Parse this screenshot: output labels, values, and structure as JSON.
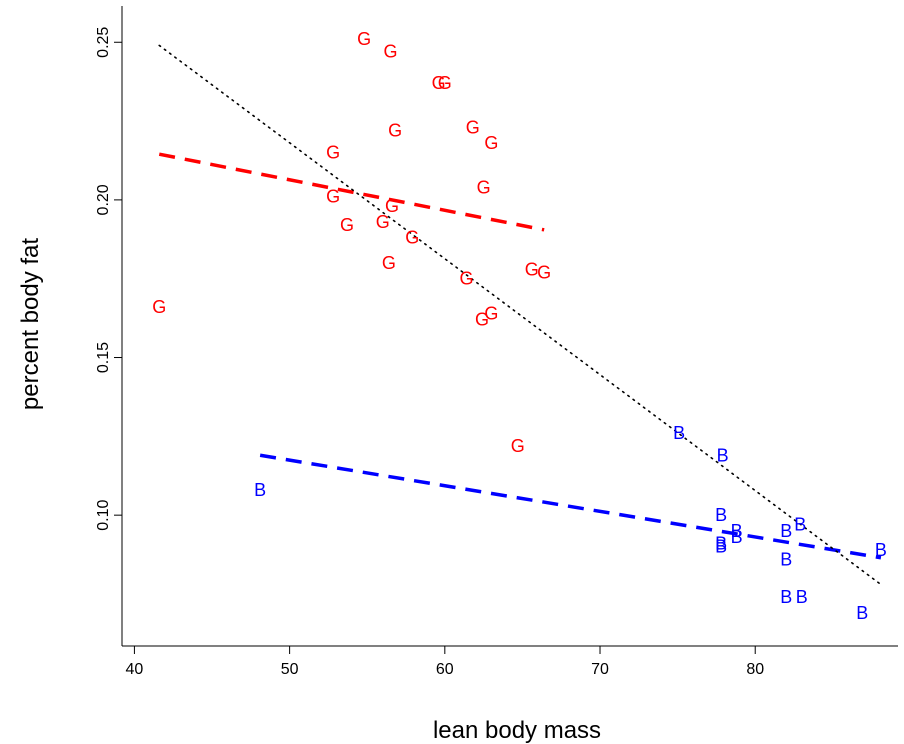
{
  "chart_data": {
    "type": "scatter",
    "title": "",
    "xlabel": "lean body mass",
    "ylabel": "percent body fat",
    "xlim": [
      39.2,
      89.2
    ],
    "ylim": [
      0.0585,
      0.2615
    ],
    "x_ticks": [
      40,
      50,
      60,
      70,
      80
    ],
    "x_tick_labels": [
      "40",
      "50",
      "60",
      "70",
      "80"
    ],
    "y_ticks": [
      0.1,
      0.15,
      0.2,
      0.25
    ],
    "y_tick_labels": [
      "0.10",
      "0.15",
      "0.20",
      "0.25"
    ],
    "grid": false,
    "series": [
      {
        "marker": "G",
        "color": "#ff0000",
        "points": [
          [
            54.8,
            0.251
          ],
          [
            56.5,
            0.247
          ],
          [
            59.6,
            0.237
          ],
          [
            60.0,
            0.237
          ],
          [
            56.8,
            0.222
          ],
          [
            61.8,
            0.223
          ],
          [
            63.0,
            0.218
          ],
          [
            52.8,
            0.215
          ],
          [
            62.5,
            0.204
          ],
          [
            52.8,
            0.201
          ],
          [
            56.6,
            0.198
          ],
          [
            56.0,
            0.193
          ],
          [
            53.7,
            0.192
          ],
          [
            57.9,
            0.188
          ],
          [
            56.4,
            0.18
          ],
          [
            65.6,
            0.178
          ],
          [
            66.4,
            0.177
          ],
          [
            61.4,
            0.175
          ],
          [
            41.6,
            0.166
          ],
          [
            63.0,
            0.164
          ],
          [
            62.4,
            0.162
          ],
          [
            64.7,
            0.122
          ]
        ]
      },
      {
        "marker": "B",
        "color": "#0000ff",
        "points": [
          [
            75.1,
            0.126
          ],
          [
            77.9,
            0.119
          ],
          [
            48.1,
            0.108
          ],
          [
            77.8,
            0.1
          ],
          [
            82.9,
            0.097
          ],
          [
            82.0,
            0.095
          ],
          [
            78.8,
            0.095
          ],
          [
            78.8,
            0.093
          ],
          [
            77.8,
            0.091
          ],
          [
            77.8,
            0.09
          ],
          [
            88.1,
            0.089
          ],
          [
            82.0,
            0.086
          ],
          [
            82.0,
            0.074
          ],
          [
            83.0,
            0.074
          ],
          [
            86.9,
            0.069
          ]
        ]
      }
    ],
    "fit_lines": [
      {
        "style": "dashed",
        "color": "#ff0000",
        "x": [
          41.6,
          66.4
        ],
        "y": [
          0.2145,
          0.1905
        ]
      },
      {
        "style": "dashed",
        "color": "#0000ff",
        "x": [
          48.1,
          88.1
        ],
        "y": [
          0.119,
          0.0865
        ]
      },
      {
        "style": "dotted",
        "color": "#000000",
        "x": [
          41.6,
          88.1
        ],
        "y": [
          0.249,
          0.078
        ]
      }
    ]
  }
}
